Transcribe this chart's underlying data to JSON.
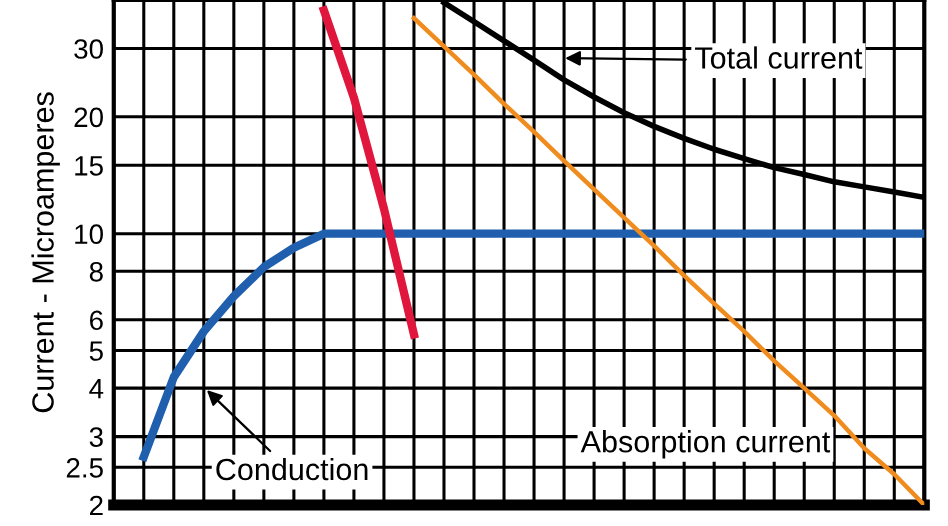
{
  "chart_data": {
    "type": "line",
    "ylabel": "Current - Microamperes",
    "categories": [
      null,
      null,
      null,
      null,
      null,
      null,
      null,
      null,
      null,
      null,
      null,
      null,
      null,
      null,
      null,
      null,
      null,
      null,
      null,
      null,
      null,
      null,
      null,
      null,
      null,
      null,
      null,
      null
    ],
    "series": [
      {
        "color": "#1f5fae",
        "values": [
          null,
          2.66,
          4.27,
          5.6,
          6.9,
          8.2,
          9.2,
          10,
          10,
          10,
          10,
          10,
          10,
          10,
          10,
          10,
          10,
          10,
          10,
          10,
          10,
          10,
          10,
          10,
          10,
          10,
          10,
          10
        ]
      },
      {
        "color": "#e0163c",
        "values": [
          null,
          null,
          null,
          null,
          null,
          null,
          null,
          37.6,
          22.4,
          11.6,
          5.5,
          null,
          null,
          null,
          null,
          null,
          null,
          null,
          null,
          null,
          null,
          null,
          null,
          null,
          null,
          null,
          null,
          null
        ]
      },
      {
        "color": "#f08c1e",
        "values": [
          null,
          null,
          null,
          null,
          null,
          null,
          null,
          null,
          null,
          null,
          35.9,
          30.4,
          25.7,
          21.6,
          18.3,
          15.4,
          13.0,
          11.0,
          9.3,
          7.8,
          6.6,
          5.6,
          4.7,
          4.0,
          3.4,
          2.8,
          2.4,
          2.0
        ]
      },
      {
        "color": "#000000",
        "values": [
          null,
          null,
          null,
          null,
          null,
          null,
          null,
          null,
          null,
          null,
          null,
          39.4,
          35.2,
          31.4,
          28.0,
          24.9,
          22.5,
          20.5,
          18.9,
          17.6,
          16.5,
          15.6,
          14.8,
          14.2,
          13.6,
          13.2,
          12.8,
          12.4
        ]
      }
    ],
    "log": "y",
    "ylim": [
      2,
      40
    ],
    "yticks": [
      2,
      2.5,
      3,
      4,
      5,
      6,
      8,
      10,
      15,
      20,
      30
    ],
    "grid": true,
    "tick_labels": "y",
    "annotations": [
      "Total current",
      "Absorption current",
      "Conduction"
    ]
  }
}
